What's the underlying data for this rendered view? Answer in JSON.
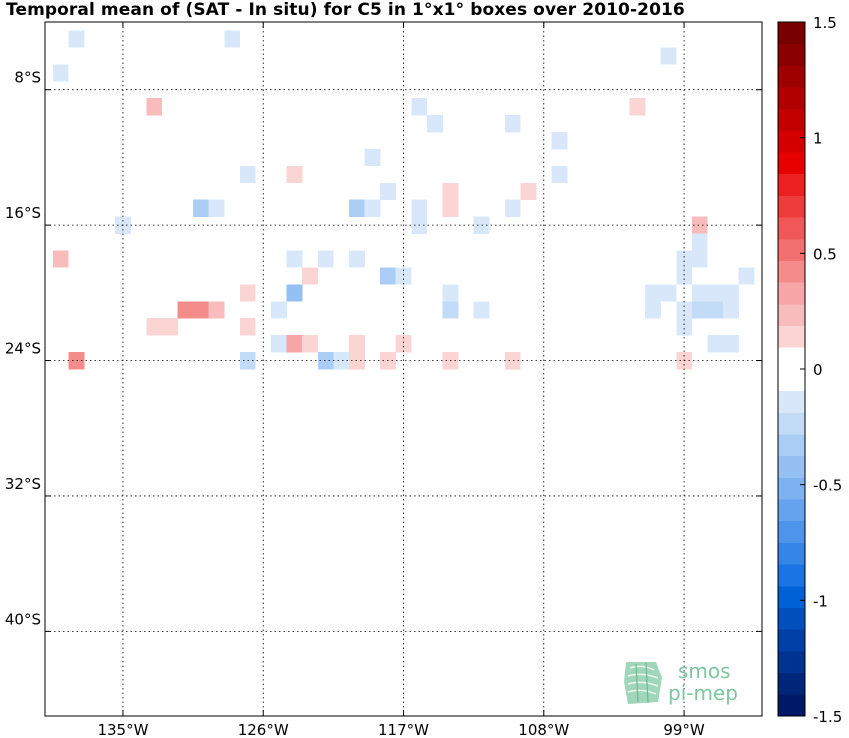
{
  "chart_data": {
    "type": "heatmap",
    "title": "Temporal mean of (SAT - In situ) for C5 in 1°x1° boxes over 2010-2016",
    "x_ticks": [
      {
        "value": -135,
        "label": "135°W"
      },
      {
        "value": -126,
        "label": "126°W"
      },
      {
        "value": -117,
        "label": "117°W"
      },
      {
        "value": -108,
        "label": "108°W"
      },
      {
        "value": -99,
        "label": "99°W"
      }
    ],
    "y_ticks": [
      {
        "value": -8,
        "label": "8°S"
      },
      {
        "value": -16,
        "label": "16°S"
      },
      {
        "value": -24,
        "label": "24°S"
      },
      {
        "value": -32,
        "label": "32°S"
      },
      {
        "value": -40,
        "label": "40°S"
      }
    ],
    "xlim": [
      -140,
      -94
    ],
    "ylim": [
      -45,
      -4
    ],
    "grid": true,
    "colorbar": {
      "range": [
        -1.5,
        1.5
      ],
      "ticks": [
        {
          "value": 1.5,
          "label": "1.5"
        },
        {
          "value": 1,
          "label": "1"
        },
        {
          "value": 0.5,
          "label": "0.5"
        },
        {
          "value": 0,
          "label": "0"
        },
        {
          "value": -0.5,
          "label": "-0.5"
        },
        {
          "value": -1,
          "label": "-1"
        },
        {
          "value": -1.5,
          "label": "-1.5"
        }
      ]
    },
    "cells_columns": [
      "lon",
      "lat",
      "value"
    ],
    "cells": [
      [
        -138,
        -5,
        -0.15
      ],
      [
        -128,
        -5,
        -0.1
      ],
      [
        -100,
        -6,
        -0.1
      ],
      [
        -139,
        -7,
        -0.1
      ],
      [
        -133,
        -9,
        0.2
      ],
      [
        -116,
        -9,
        -0.1
      ],
      [
        -102,
        -9,
        0.15
      ],
      [
        -115,
        -10,
        -0.1
      ],
      [
        -110,
        -10,
        -0.1
      ],
      [
        -107,
        -11,
        -0.1
      ],
      [
        -119,
        -12,
        -0.1
      ],
      [
        -127,
        -13,
        -0.1
      ],
      [
        -124,
        -13,
        0.15
      ],
      [
        -107,
        -13,
        -0.1
      ],
      [
        -109,
        -14,
        0.15
      ],
      [
        -118,
        -14,
        -0.1
      ],
      [
        -114,
        -14,
        0.1
      ],
      [
        -130,
        -15,
        -0.3
      ],
      [
        -129,
        -15,
        -0.1
      ],
      [
        -120,
        -15,
        -0.3
      ],
      [
        -119,
        -15,
        -0.15
      ],
      [
        -116,
        -15,
        -0.1
      ],
      [
        -114,
        -15,
        0.15
      ],
      [
        -110,
        -15,
        -0.1
      ],
      [
        -135,
        -16,
        -0.1
      ],
      [
        -116,
        -16,
        -0.1
      ],
      [
        -112,
        -16,
        -0.1
      ],
      [
        -98,
        -16,
        0.2
      ],
      [
        -98,
        -17,
        -0.1
      ],
      [
        -139,
        -18,
        0.2
      ],
      [
        -124,
        -18,
        -0.1
      ],
      [
        -122,
        -18,
        -0.15
      ],
      [
        -120,
        -18,
        -0.1
      ],
      [
        -99,
        -18,
        -0.1
      ],
      [
        -98,
        -18,
        -0.1
      ],
      [
        -123,
        -19,
        0.1
      ],
      [
        -118,
        -19,
        -0.3
      ],
      [
        -117,
        -19,
        -0.1
      ],
      [
        -99,
        -19,
        -0.1
      ],
      [
        -95,
        -19,
        -0.1
      ],
      [
        -127,
        -20,
        0.15
      ],
      [
        -124,
        -20,
        -0.4
      ],
      [
        -114,
        -20,
        -0.1
      ],
      [
        -101,
        -20,
        -0.1
      ],
      [
        -100,
        -20,
        -0.1
      ],
      [
        -98,
        -20,
        -0.1
      ],
      [
        -97,
        -20,
        -0.1
      ],
      [
        -96,
        -20,
        -0.1
      ],
      [
        -131,
        -21,
        0.4
      ],
      [
        -130,
        -21,
        0.4
      ],
      [
        -129,
        -21,
        0.2
      ],
      [
        -125,
        -21,
        -0.1
      ],
      [
        -114,
        -21,
        -0.25
      ],
      [
        -112,
        -21,
        -0.1
      ],
      [
        -101,
        -21,
        -0.1
      ],
      [
        -99,
        -21,
        -0.1
      ],
      [
        -98,
        -21,
        -0.25
      ],
      [
        -97,
        -21,
        -0.25
      ],
      [
        -96,
        -21,
        -0.1
      ],
      [
        -133,
        -22,
        0.15
      ],
      [
        -132,
        -22,
        0.15
      ],
      [
        -127,
        -22,
        0.15
      ],
      [
        -99,
        -22,
        -0.1
      ],
      [
        -125,
        -23,
        -0.15
      ],
      [
        -124,
        -23,
        0.3
      ],
      [
        -123,
        -23,
        0.15
      ],
      [
        -120,
        -23,
        0.15
      ],
      [
        -117,
        -23,
        0.15
      ],
      [
        -97,
        -23,
        -0.1
      ],
      [
        -96,
        -23,
        -0.1
      ],
      [
        -138,
        -24,
        0.45
      ],
      [
        -127,
        -24,
        -0.25
      ],
      [
        -122,
        -24,
        -0.3
      ],
      [
        -121,
        -24,
        -0.1
      ],
      [
        -120,
        -24,
        0.15
      ],
      [
        -118,
        -24,
        0.1
      ],
      [
        -114,
        -24,
        0.15
      ],
      [
        -110,
        -24,
        0.15
      ],
      [
        -99,
        -24,
        0.15
      ]
    ]
  }
}
